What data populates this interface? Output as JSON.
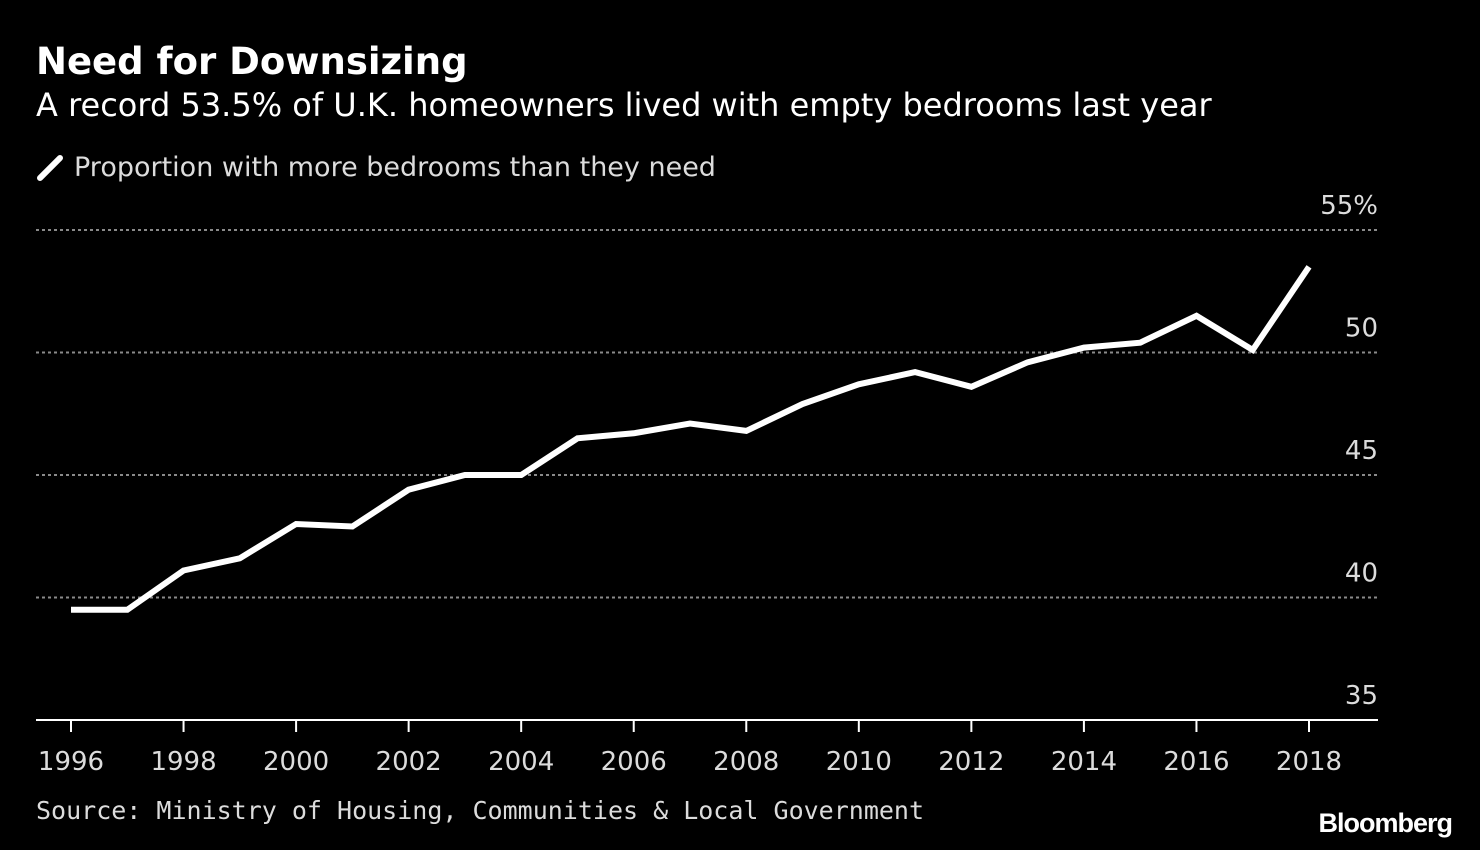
{
  "chart_data": {
    "type": "line",
    "title": "Need for Downsizing",
    "subtitle": "A record 53.5% of U.K. homeowners lived with empty bedrooms last year",
    "xlabel": "",
    "ylabel": "",
    "ylim": [
      35,
      55
    ],
    "xlim": [
      1996,
      2018
    ],
    "yticks": [
      35,
      40,
      45,
      50,
      55
    ],
    "ytick_labels": [
      "35",
      "40",
      "45",
      "50",
      "55%"
    ],
    "xticks": [
      1996,
      1998,
      2000,
      2002,
      2004,
      2006,
      2008,
      2010,
      2012,
      2014,
      2016,
      2018
    ],
    "xtick_labels": [
      "1996",
      "1998",
      "2000",
      "2002",
      "2004",
      "2006",
      "2008",
      "2010",
      "2012",
      "2014",
      "2016",
      "2018"
    ],
    "grid": true,
    "legend_position": "top-left",
    "series": [
      {
        "name": "Proportion with more bedrooms than they need",
        "color": "#ffffff",
        "x": [
          1996,
          1997,
          1998,
          1999,
          2000,
          2001,
          2002,
          2003,
          2004,
          2005,
          2006,
          2007,
          2008,
          2009,
          2010,
          2011,
          2012,
          2013,
          2014,
          2015,
          2016,
          2017,
          2018
        ],
        "values": [
          39.5,
          39.5,
          41.1,
          41.6,
          43.0,
          42.9,
          44.4,
          45.0,
          45.0,
          46.5,
          46.7,
          47.1,
          46.8,
          47.9,
          48.7,
          49.2,
          48.6,
          49.6,
          50.2,
          50.4,
          51.5,
          50.1,
          53.5
        ]
      }
    ]
  },
  "source": "Source: Ministry of Housing, Communities & Local Government",
  "brand": "Bloomberg",
  "colors": {
    "background": "#000000",
    "line": "#ffffff",
    "grid": "#8a8a8a",
    "axis": "#ffffff",
    "tick_text": "#dcdcdc"
  }
}
